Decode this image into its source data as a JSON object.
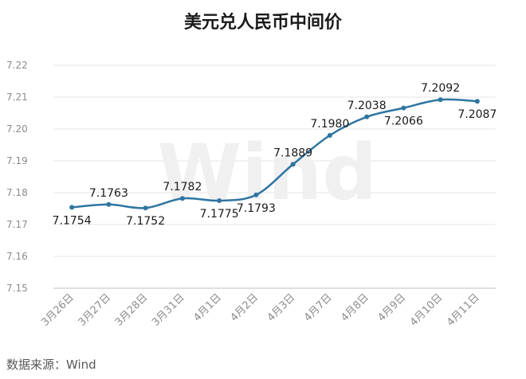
{
  "chart_data": {
    "type": "line",
    "title": "美元兑人民币中间价",
    "categories": [
      "3月26日",
      "3月27日",
      "3月28日",
      "3月31日",
      "4月1日",
      "4月2日",
      "4月3日",
      "4月7日",
      "4月8日",
      "4月9日",
      "4月10日",
      "4月11日"
    ],
    "values": [
      7.1754,
      7.1763,
      7.1752,
      7.1782,
      7.1775,
      7.1793,
      7.1889,
      7.198,
      7.2038,
      7.2066,
      7.2092,
      7.2087
    ],
    "data_labels": [
      "7.1754",
      "7.1763",
      "7.1752",
      "7.1782",
      "7.1775",
      "7.1793",
      "7.1889",
      "7.1980",
      "7.2038",
      "7.2066",
      "7.2092",
      "7.2087"
    ],
    "y_ticks": [
      "7.15",
      "7.16",
      "7.17",
      "7.18",
      "7.19",
      "7.20",
      "7.21",
      "7.22"
    ],
    "ylim": [
      7.15,
      7.22
    ],
    "grid": true,
    "line_color": "#2e75a0",
    "grid_color": "#e6e6e6",
    "watermark": "Wind"
  },
  "source_text": "数据来源：Wind"
}
